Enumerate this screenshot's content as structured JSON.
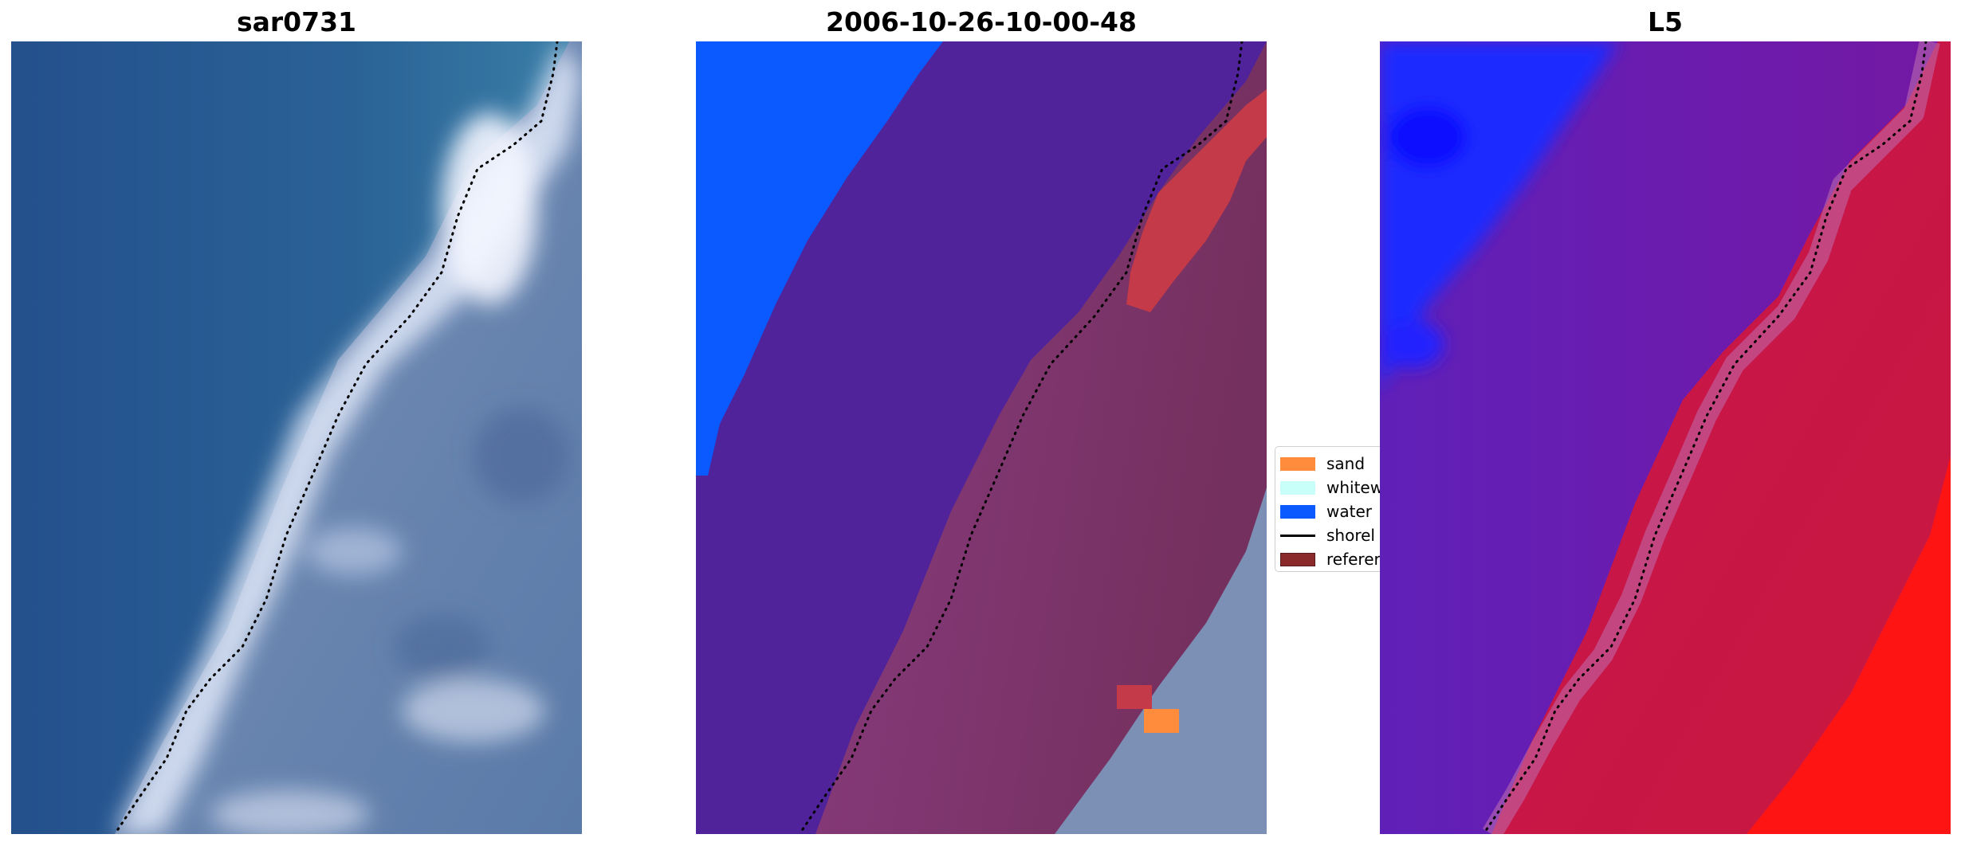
{
  "panels": [
    {
      "title": "sar0731",
      "description_name": "rgb-image"
    },
    {
      "title": "2006-10-26-10-00-48",
      "description_name": "classified-image"
    },
    {
      "title": "L5",
      "description_name": "index-image"
    }
  ],
  "legend": {
    "items": [
      {
        "label": "sand",
        "color": "#ff8c3c",
        "kind": "patch"
      },
      {
        "label": "whitew",
        "color": "#c8fff8",
        "kind": "patch"
      },
      {
        "label": "water",
        "color": "#0a5aff",
        "kind": "patch"
      },
      {
        "label": "shorel",
        "color": "#000000",
        "kind": "line"
      },
      {
        "label": "referer",
        "color": "#8b2a2a",
        "kind": "patch"
      }
    ]
  },
  "colors": {
    "rgb_water": "#2a5f9a",
    "rgb_surf": "#d8e4f4",
    "rgb_land": "#5e7aa6",
    "class_ocean": "#0a5aff",
    "class_water": "#50239a",
    "class_land": "#7e3470",
    "class_reference": "#c43a48",
    "class_sand": "#ff8c3c",
    "index_water": "#6a1fb0",
    "index_blue": "#1f2cff",
    "index_land": "#c21848",
    "index_red": "#ff1414"
  }
}
